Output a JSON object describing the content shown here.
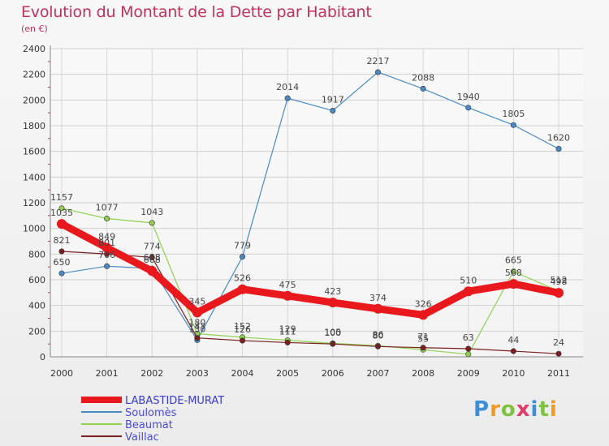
{
  "title": "Evolution du Montant de la Dette par Habitant",
  "subtitle": "(en €)",
  "brand": "Proxiti",
  "brand_colors": [
    "#3a8fd8",
    "#f29a1f",
    "#7fc241",
    "#e23c6b",
    "#3a8fd8",
    "#7fc241",
    "#f29a1f"
  ],
  "chart_data": {
    "type": "line",
    "title": "Evolution du Montant de la Dette par Habitant",
    "ylabel": "(en €)",
    "xlabel": "",
    "x": [
      "2000",
      "2001",
      "2002",
      "2003",
      "2004",
      "2005",
      "2006",
      "2007",
      "2008",
      "2009",
      "2010",
      "2011"
    ],
    "yticks": [
      "0",
      "200",
      "400",
      "600",
      "800",
      "1000",
      "1200",
      "1400",
      "1600",
      "1800",
      "2000",
      "2200",
      "2400"
    ],
    "ylim": [
      0,
      2400
    ],
    "grid": true,
    "legend_position": "bottom-left",
    "series": [
      {
        "name": "LABASTIDE-MURAT",
        "color": "#e8181c",
        "thick": true,
        "values": [
          1035,
          849,
          668,
          345,
          526,
          475,
          423,
          374,
          326,
          510,
          568,
          498
        ],
        "labels": [
          "1035",
          "849",
          "668",
          "345",
          "526",
          "475",
          "423",
          "374",
          "326",
          "510",
          "568",
          "498"
        ]
      },
      {
        "name": "Soulomès",
        "color": "#4a8ac4",
        "thick": false,
        "values": [
          650,
          706,
          688,
          130,
          779,
          2014,
          1917,
          2217,
          2088,
          1940,
          1805,
          1620
        ],
        "labels": [
          "650",
          "706",
          "688",
          "130",
          "779",
          "2014",
          "1917",
          "2217",
          "2088",
          "1940",
          "1805",
          "1620"
        ]
      },
      {
        "name": "Beaumat",
        "color": "#8fd14f",
        "thick": false,
        "values": [
          1157,
          1077,
          1043,
          180,
          152,
          129,
          105,
          86,
          55,
          20,
          665,
          512
        ],
        "labels": [
          "1157",
          "1077",
          "1043",
          "180",
          "152",
          "129",
          "105",
          "86",
          "55",
          "",
          "665",
          "512"
        ]
      },
      {
        "name": "Vaillac",
        "color": "#7a1f1f",
        "thick": false,
        "values": [
          821,
          801,
          774,
          147,
          126,
          111,
          100,
          80,
          71,
          63,
          44,
          24
        ],
        "labels": [
          "821",
          "801",
          "774",
          "147",
          "126",
          "111",
          "100",
          "80",
          "71",
          "63",
          "44",
          "24"
        ]
      }
    ]
  }
}
